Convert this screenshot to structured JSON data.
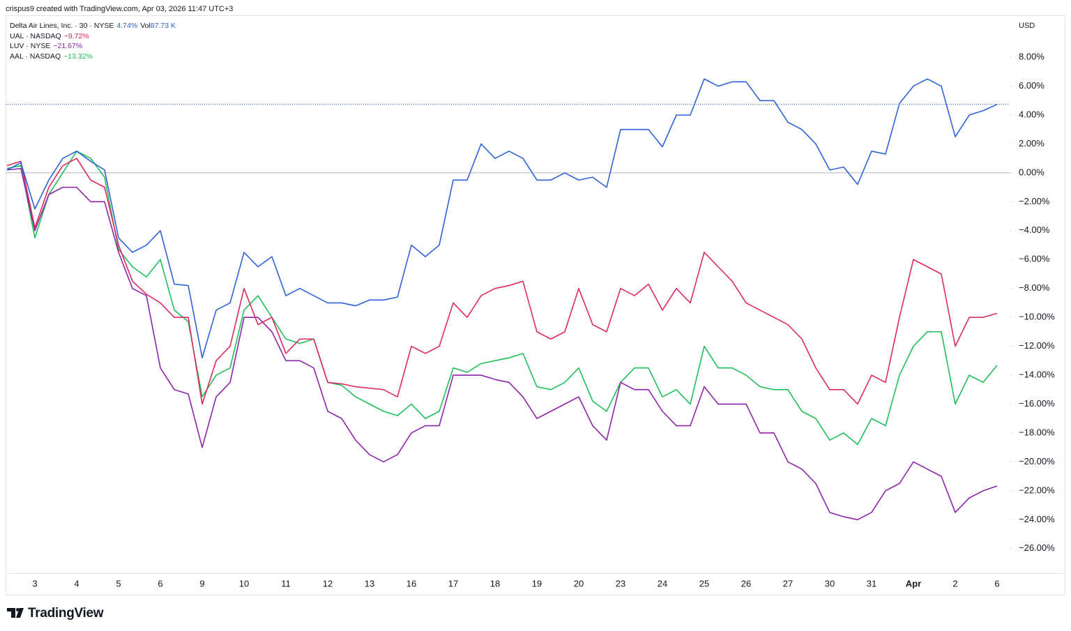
{
  "header": "crispus9 created with TradingView.com, Apr 03, 2026 11:47 UTC+3",
  "chart_data": {
    "type": "line",
    "currency": "USD",
    "volume_label": "Vol",
    "volume": "87.73 K",
    "zero_line": true,
    "price_line": true,
    "categories": [
      null,
      null,
      "3",
      null,
      null,
      "4",
      null,
      null,
      "5",
      null,
      null,
      "6",
      null,
      null,
      "9",
      null,
      null,
      "10",
      null,
      null,
      "11",
      null,
      null,
      "12",
      null,
      null,
      "13",
      null,
      null,
      "16",
      null,
      null,
      "17",
      null,
      null,
      "18",
      null,
      null,
      "19",
      null,
      null,
      "20",
      null,
      null,
      "23",
      null,
      null,
      "24",
      null,
      null,
      "25",
      null,
      null,
      "26",
      null,
      null,
      "27",
      null,
      null,
      "30",
      null,
      null,
      "31",
      null,
      null,
      "Apr",
      null,
      null,
      "2",
      null,
      null,
      "6"
    ],
    "bold_categories": [
      "Apr"
    ],
    "series": [
      {
        "name": "Delta Air Lines, Inc. · 30 · NYSE",
        "color": "#2f62d9",
        "change_label": "4.74%",
        "values": [
          0.2,
          0.7,
          -2.5,
          -0.5,
          1.0,
          1.5,
          0.8,
          0.2,
          -4.5,
          -5.5,
          -5.0,
          -4.0,
          -7.7,
          -7.8,
          -12.8,
          -9.5,
          -9.0,
          -5.5,
          -6.5,
          -5.8,
          -8.5,
          -8.0,
          -8.5,
          -9.0,
          -9.0,
          -9.2,
          -8.8,
          -8.8,
          -8.6,
          -5.0,
          -5.8,
          -5.0,
          -0.5,
          -0.5,
          2.0,
          1.0,
          1.5,
          1.0,
          -0.5,
          -0.5,
          0.0,
          -0.5,
          -0.3,
          -1.0,
          3.0,
          3.0,
          3.0,
          1.8,
          4.0,
          4.0,
          6.5,
          6.0,
          6.3,
          6.3,
          5.0,
          5.0,
          3.5,
          3.0,
          2.0,
          0.2,
          0.4,
          -0.8,
          1.5,
          1.3,
          4.8,
          6.0,
          6.5,
          6.0,
          2.5,
          4.0,
          4.3,
          4.74
        ]
      },
      {
        "name": "UAL · NASDAQ",
        "color": "#de2a5c",
        "change_label": "−9.72%",
        "values": [
          0.5,
          0.8,
          -3.8,
          -1.0,
          0.5,
          1.0,
          -0.5,
          -1.0,
          -5.0,
          -7.5,
          -8.4,
          -9.0,
          -10.0,
          -10.0,
          -16.0,
          -13.0,
          -12.0,
          -8.0,
          -10.5,
          -10.0,
          -12.5,
          -11.5,
          -11.5,
          -14.5,
          -14.6,
          -14.8,
          -14.9,
          -15.0,
          -15.5,
          -12.0,
          -12.5,
          -12.0,
          -9.0,
          -10.0,
          -8.5,
          -8.0,
          -7.8,
          -7.5,
          -11.0,
          -11.5,
          -11.0,
          -8.0,
          -10.5,
          -11.0,
          -8.0,
          -8.5,
          -7.7,
          -9.5,
          -8.0,
          -9.0,
          -5.5,
          -6.5,
          -7.5,
          -9.0,
          -9.5,
          -10.0,
          -10.5,
          -11.5,
          -13.5,
          -15.0,
          -15.0,
          -16.0,
          -14.0,
          -14.5,
          -10.0,
          -6.0,
          -6.5,
          -7.0,
          -12.0,
          -10.0,
          -10.0,
          -9.72
        ]
      },
      {
        "name": "LUV · NYSE",
        "color": "#8e24aa",
        "change_label": "−21.67%",
        "values": [
          0.2,
          0.3,
          -4.0,
          -1.5,
          -1.0,
          -1.0,
          -2.0,
          -2.0,
          -5.5,
          -8.0,
          -8.5,
          -13.5,
          -15.0,
          -15.3,
          -19.0,
          -15.5,
          -14.5,
          -10.0,
          -10.0,
          -11.0,
          -13.0,
          -13.0,
          -13.5,
          -16.5,
          -17.0,
          -18.5,
          -19.5,
          -20.0,
          -19.5,
          -18.0,
          -17.5,
          -17.5,
          -14.0,
          -14.0,
          -14.0,
          -14.3,
          -14.5,
          -15.5,
          -17.0,
          -16.5,
          -16.0,
          -15.5,
          -17.5,
          -18.5,
          -14.5,
          -15.0,
          -15.0,
          -16.5,
          -17.5,
          -17.5,
          -14.8,
          -16.0,
          -16.0,
          -16.0,
          -18.0,
          -18.0,
          -20.0,
          -20.5,
          -21.5,
          -23.5,
          -23.8,
          -24.0,
          -23.5,
          -22.0,
          -21.5,
          -20.0,
          -20.5,
          -21.0,
          -23.5,
          -22.5,
          -22.0,
          -21.67
        ]
      },
      {
        "name": "AAL · NASDAQ",
        "color": "#1fbf5a",
        "change_label": "−13.32%",
        "values": [
          0.3,
          0.5,
          -4.5,
          -1.5,
          0.0,
          1.5,
          1.0,
          -0.3,
          -5.3,
          -6.5,
          -7.2,
          -6.0,
          -9.5,
          -10.3,
          -15.5,
          -14.0,
          -13.5,
          -9.5,
          -8.5,
          -10.0,
          -11.5,
          -11.8,
          -11.5,
          -14.5,
          -14.7,
          -15.5,
          -16.0,
          -16.5,
          -16.8,
          -16.0,
          -17.0,
          -16.5,
          -13.5,
          -13.8,
          -13.2,
          -13.0,
          -12.8,
          -12.5,
          -14.8,
          -15.0,
          -14.5,
          -13.5,
          -15.8,
          -16.5,
          -14.5,
          -13.5,
          -13.5,
          -15.5,
          -15.0,
          -16.0,
          -12.0,
          -13.5,
          -13.5,
          -14.0,
          -14.8,
          -15.0,
          -15.0,
          -16.5,
          -17.0,
          -18.5,
          -18.0,
          -18.8,
          -17.0,
          -17.5,
          -14.0,
          -12.0,
          -11.0,
          -11.0,
          -16.0,
          -14.0,
          -14.5,
          -13.32
        ]
      }
    ],
    "ylim": [
      -27.7,
      10.9
    ],
    "yticks": [
      {
        "value": 8,
        "label": "8.00%"
      },
      {
        "value": 6,
        "label": "6.00%"
      },
      {
        "value": 4,
        "label": "4.00%"
      },
      {
        "value": 2,
        "label": "2.00%"
      },
      {
        "value": 0,
        "label": "0.00%"
      },
      {
        "value": -2,
        "label": "−2.00%"
      },
      {
        "value": -4,
        "label": "−4.00%"
      },
      {
        "value": -6,
        "label": "−6.00%"
      },
      {
        "value": -8,
        "label": "−8.00%"
      },
      {
        "value": -10,
        "label": "−10.00%"
      },
      {
        "value": -12,
        "label": "−12.00%"
      },
      {
        "value": -14,
        "label": "−14.00%"
      },
      {
        "value": -16,
        "label": "−16.00%"
      },
      {
        "value": -18,
        "label": "−18.00%"
      },
      {
        "value": -20,
        "label": "−20.00%"
      },
      {
        "value": -22,
        "label": "−22.00%"
      },
      {
        "value": -24,
        "label": "−24.00%"
      },
      {
        "value": -26,
        "label": "−26.00%"
      }
    ]
  },
  "footer": {
    "brand": "TradingView"
  }
}
